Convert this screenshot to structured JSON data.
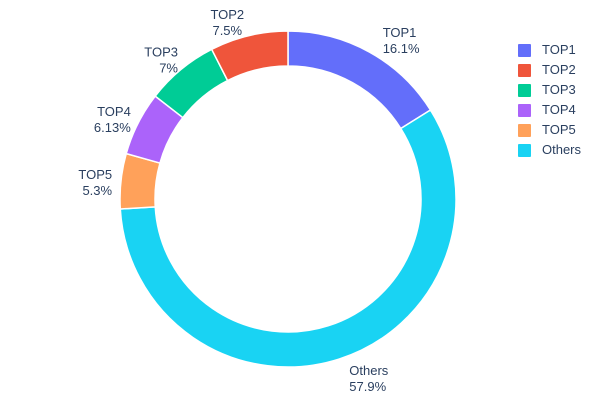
{
  "chart_data": {
    "type": "pie",
    "subtype": "donut",
    "title": "",
    "categories": [
      "TOP1",
      "TOP2",
      "TOP3",
      "TOP4",
      "TOP5",
      "Others"
    ],
    "values": [
      16.1,
      7.5,
      7,
      6.13,
      5.3,
      57.9
    ],
    "value_labels": [
      "16.1%",
      "7.5%",
      "7%",
      "6.13%",
      "5.3%",
      "57.9%"
    ],
    "colors": {
      "TOP1": "#636EFA",
      "TOP2": "#EF553B",
      "TOP3": "#00CC96",
      "TOP4": "#AB63FA",
      "TOP5": "#FFA15A",
      "Others": "#19D3F3"
    },
    "hole": 0.79,
    "clockwise_order_from_top": [
      "TOP1",
      "Others",
      "TOP5",
      "TOP4",
      "TOP3",
      "TOP2"
    ],
    "legend": {
      "position": "right",
      "items": [
        "TOP1",
        "TOP2",
        "TOP3",
        "TOP4",
        "TOP5",
        "Others"
      ]
    },
    "text_color": "#2a3f5f",
    "background": "#ffffff"
  }
}
